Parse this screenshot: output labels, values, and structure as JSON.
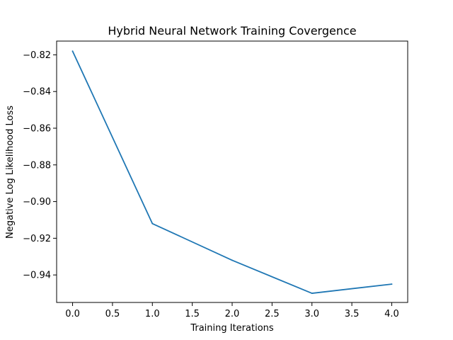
{
  "chart_data": {
    "type": "line",
    "title": "Hybrid Neural Network Training Covergence",
    "xlabel": "Training Iterations",
    "ylabel": "Negative Log Likelihood Loss",
    "x": [
      0,
      1,
      2,
      3,
      4
    ],
    "series": [
      {
        "values": [
          -0.818,
          -0.912,
          -0.932,
          -0.95,
          -0.945
        ],
        "color": "#1f77b4"
      }
    ],
    "xlim": [
      -0.2,
      4.2
    ],
    "ylim": [
      -0.955,
      -0.8125
    ],
    "xticks": [
      0.0,
      0.5,
      1.0,
      1.5,
      2.0,
      2.5,
      3.0,
      3.5,
      4.0
    ],
    "xtick_labels": [
      "0.0",
      "0.5",
      "1.0",
      "1.5",
      "2.0",
      "2.5",
      "3.0",
      "3.5",
      "4.0"
    ],
    "yticks": [
      -0.82,
      -0.84,
      -0.86,
      -0.88,
      -0.9,
      -0.92,
      -0.94
    ],
    "ytick_labels": [
      "−0.82",
      "−0.84",
      "−0.86",
      "−0.88",
      "−0.90",
      "−0.92",
      "−0.94"
    ],
    "grid": false,
    "legend": false
  }
}
